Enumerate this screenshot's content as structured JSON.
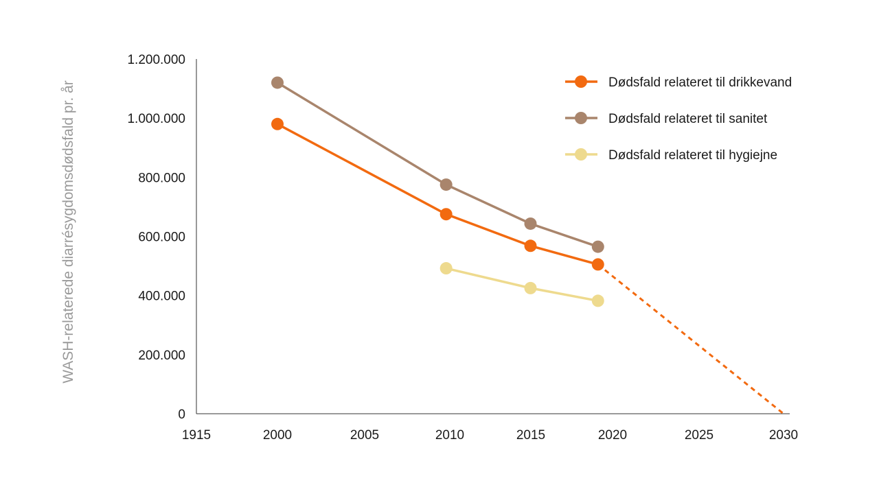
{
  "chart_data": {
    "type": "line",
    "title": "",
    "ylabel": "WASH-relaterede diarrésygdomsdødsfald pr. år",
    "xlabel": "",
    "x_tick_labels": [
      "1915",
      "2000",
      "2005",
      "2010",
      "2015",
      "2020",
      "2025",
      "2030"
    ],
    "y_tick_labels": [
      "0",
      "200.000",
      "400.000",
      "600.000",
      "800.000",
      "1.000.000",
      "1.200.000"
    ],
    "y_ticks": [
      0,
      200000,
      400000,
      600000,
      800000,
      1000000,
      1200000
    ],
    "ylim": [
      0,
      1200000
    ],
    "grid": false,
    "legend_position": "top-right",
    "series": [
      {
        "name": "Dødsfald relateret til drikkevand",
        "color": "#F26A10",
        "points": [
          {
            "x": "2000",
            "y": 980000
          },
          {
            "x": "2010",
            "y": 675000
          },
          {
            "x": "2015",
            "y": 568000
          },
          {
            "x": "2019",
            "y": 505000
          }
        ],
        "projection": [
          {
            "x": "2019",
            "y": 505000
          },
          {
            "x": "2030",
            "y": 0
          }
        ]
      },
      {
        "name": "Dødsfald relateret til sanitet",
        "color": "#A9856C",
        "points": [
          {
            "x": "2000",
            "y": 1120000
          },
          {
            "x": "2010",
            "y": 775000
          },
          {
            "x": "2015",
            "y": 643000
          },
          {
            "x": "2019",
            "y": 565000
          }
        ]
      },
      {
        "name": "Dødsfald relateret til hygiejne",
        "color": "#EEDA8E",
        "points": [
          {
            "x": "2010",
            "y": 492000
          },
          {
            "x": "2015",
            "y": 425000
          },
          {
            "x": "2019",
            "y": 382000
          }
        ]
      }
    ]
  }
}
